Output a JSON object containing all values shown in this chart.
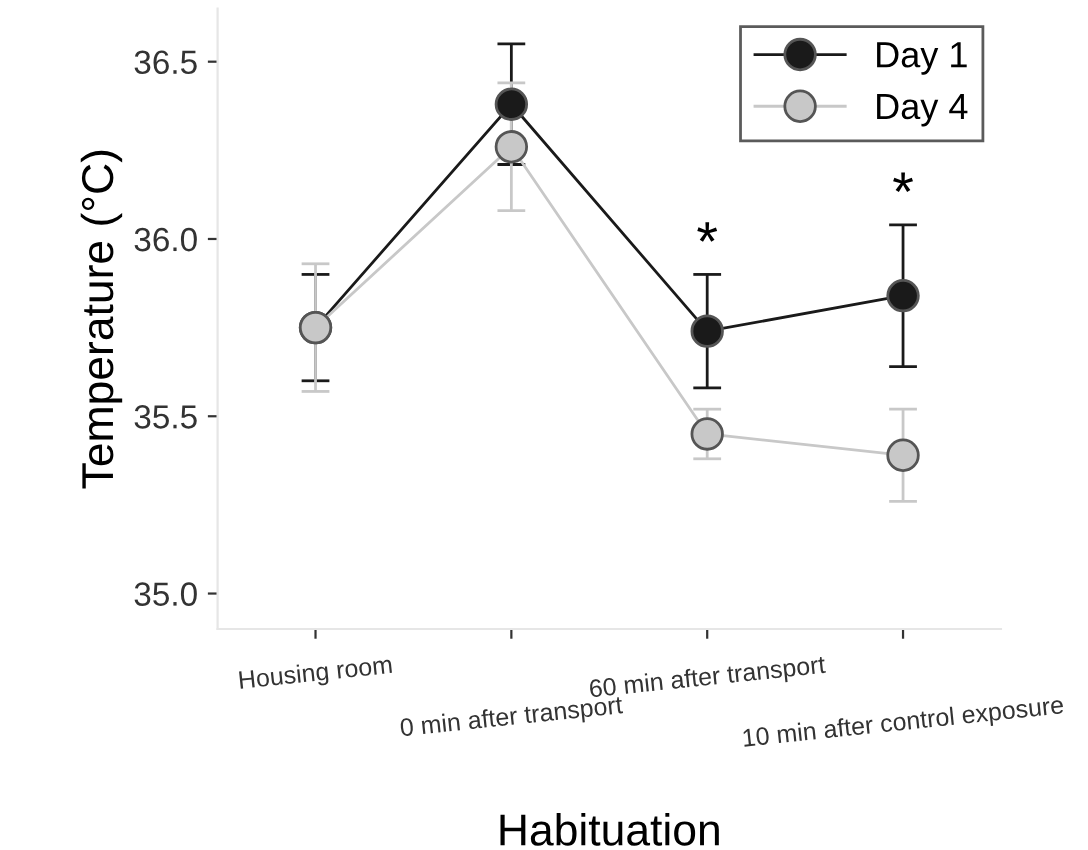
{
  "chart_data": {
    "type": "line",
    "xlabel": "Habituation",
    "ylabel": "Temperature (°C)",
    "categories": [
      "Housing room",
      "0 min after transport",
      "60 min after transport",
      "10 min after control exposure"
    ],
    "series": [
      {
        "name": "Day 1",
        "color": "#1a1a1a",
        "values": [
          35.75,
          36.38,
          35.74,
          35.84
        ],
        "errors": [
          0.15,
          0.17,
          0.16,
          0.2
        ]
      },
      {
        "name": "Day 4",
        "color": "#c8c8c8",
        "values": [
          35.75,
          36.26,
          35.45,
          35.39
        ],
        "errors": [
          0.18,
          0.18,
          0.07,
          0.13
        ]
      }
    ],
    "ylim": [
      34.9,
      36.65
    ],
    "yticks": [
      {
        "value": 35.0,
        "label": "35.0"
      },
      {
        "value": 35.5,
        "label": "35.5"
      },
      {
        "value": 36.0,
        "label": "36.0"
      },
      {
        "value": 36.5,
        "label": "36.5"
      }
    ],
    "annotations": [
      "*",
      "*"
    ],
    "marker": "circle",
    "legend": "top right",
    "grid": false
  }
}
